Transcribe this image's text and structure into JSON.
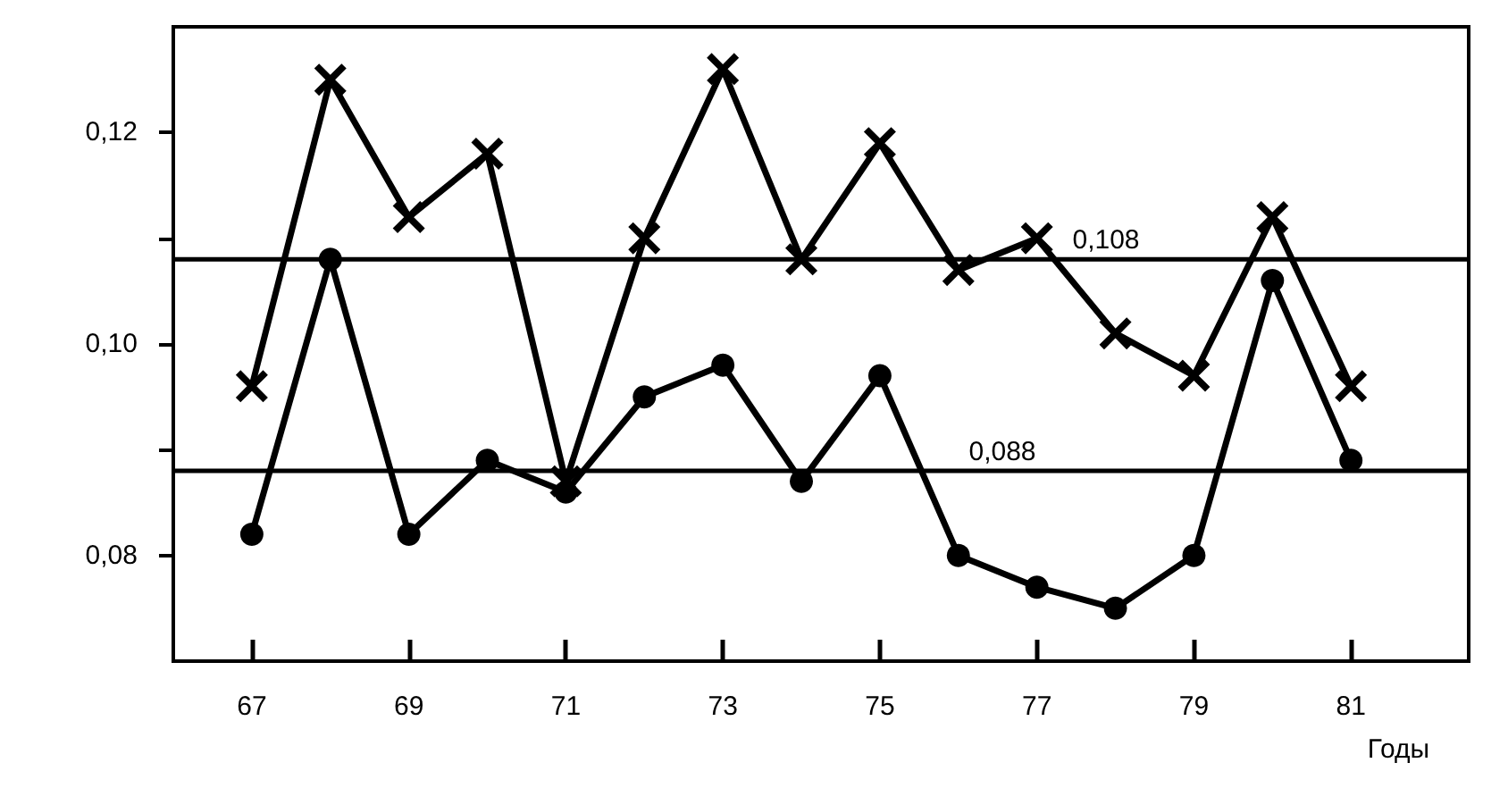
{
  "chart_data": {
    "type": "line",
    "xlabel": "Годы",
    "x": [
      67,
      68,
      69,
      70,
      71,
      72,
      73,
      74,
      75,
      76,
      77,
      78,
      79,
      80,
      81
    ],
    "series": [
      {
        "color": "#000000",
        "marker": "cross",
        "values": [
          0.096,
          0.125,
          0.112,
          0.118,
          0.087,
          0.11,
          0.126,
          0.108,
          0.119,
          0.107,
          0.11,
          0.101,
          0.097,
          0.112,
          0.096
        ]
      },
      {
        "color": "#000000",
        "marker": "circle",
        "values": [
          0.082,
          0.108,
          0.082,
          0.089,
          0.086,
          0.095,
          0.098,
          0.087,
          0.097,
          0.08,
          0.077,
          0.075,
          0.08,
          0.106,
          0.089
        ]
      }
    ],
    "xlim": [
      66,
      82.5
    ],
    "xticks": [
      67,
      69,
      71,
      73,
      75,
      77,
      79,
      81
    ],
    "ylim": [
      0.07,
      0.13
    ],
    "yticks": [
      {
        "value": 0.08,
        "label": "0,08"
      },
      {
        "value": 0.09,
        "label": null
      },
      {
        "value": 0.1,
        "label": "0,10"
      },
      {
        "value": 0.11,
        "label": null
      },
      {
        "value": 0.12,
        "label": "0,12"
      }
    ],
    "ref_lines": [
      {
        "axis": "y",
        "value": 0.108,
        "label": "0,108"
      },
      {
        "axis": "y",
        "value": 0.088,
        "label": "0,088"
      }
    ],
    "grid": false,
    "line_style": "solid"
  }
}
